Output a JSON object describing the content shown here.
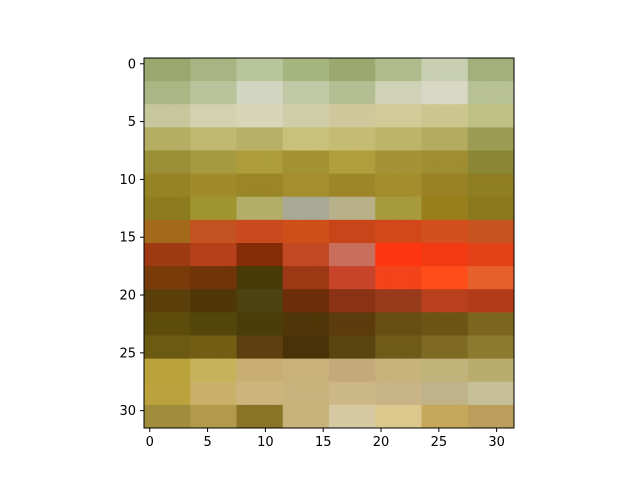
{
  "chart_data": {
    "type": "heatmap",
    "title": "",
    "xlabel": "",
    "ylabel": "",
    "grid": false,
    "legend": "none",
    "xlim": [
      -0.5,
      31.5
    ],
    "ylim": [
      31.5,
      -0.5
    ],
    "x_ticks": [
      0,
      5,
      10,
      15,
      20,
      25,
      30
    ],
    "y_ticks": [
      0,
      5,
      10,
      15,
      20,
      25,
      30
    ],
    "image_size": [
      32,
      32
    ],
    "row_bands_rgb_hex": [
      [
        "#9aa870",
        "#a8b481",
        "#b9c59c",
        "#a6b47e",
        "#9aa870",
        "#b0bb8c",
        "#c9cfb1",
        "#a3b07b"
      ],
      [
        "#aab683",
        "#b9c39b",
        "#d2d5bf",
        "#c1c8a5",
        "#b5be93",
        "#cfd2b6",
        "#d8d8c5",
        "#b8c095"
      ],
      [
        "#c6c79d",
        "#d4d1b0",
        "#d9d5b8",
        "#cfcda7",
        "#d0c89a",
        "#d2ca97",
        "#cbc68e",
        "#bfc083"
      ],
      [
        "#b4ad62",
        "#c0b86e",
        "#b9b067",
        "#c9c07b",
        "#c6bb73",
        "#bdb46a",
        "#b5ab60",
        "#9d9c55"
      ],
      [
        "#9a8f36",
        "#a59a40",
        "#ad9e3b",
        "#a39233",
        "#b09d3c",
        "#a59236",
        "#9f8d32",
        "#8c8734"
      ],
      [
        "#958324",
        "#a08b2a",
        "#9a8527",
        "#a58e2e",
        "#9d8628",
        "#a48d2d",
        "#998225",
        "#8f7e24"
      ],
      [
        "#8d7b20",
        "#a0942f",
        "#b3ad6a",
        "#a9a894",
        "#b8b089",
        "#a69a3d",
        "#987f1c",
        "#8b7a1d"
      ],
      [
        "#a36a1c",
        "#c25220",
        "#c94a1c",
        "#cf4f1a",
        "#c74518",
        "#d2481a",
        "#d3501e",
        "#c55421"
      ],
      [
        "#9e3a12",
        "#b6401a",
        "#842c08",
        "#c24a22",
        "#c86e5c",
        "#ff3510",
        "#f23a12",
        "#e34218"
      ],
      [
        "#7a3b0b",
        "#703408",
        "#4a3a08",
        "#9c3914",
        "#c7432a",
        "#f2431a",
        "#ff4d1a",
        "#e5602c"
      ],
      [
        "#5a3f0b",
        "#4f3708",
        "#4d4210",
        "#6b2e08",
        "#8a3214",
        "#983b1c",
        "#b8401c",
        "#b33c18"
      ],
      [
        "#5e4c0c",
        "#54460b",
        "#4a3d0a",
        "#503709",
        "#5c3c0d",
        "#674e14",
        "#6b5416",
        "#7b6620"
      ],
      [
        "#6d5a12",
        "#735e14",
        "#5d4010",
        "#4a3208",
        "#5a4410",
        "#6f5a18",
        "#7e6a22",
        "#8c7a2e"
      ],
      [
        "#b9a23a",
        "#c7b25c",
        "#c9ae74",
        "#c9b27a",
        "#c4a97a",
        "#c8b37c",
        "#c1b37a",
        "#b9ad6e"
      ],
      [
        "#bba23c",
        "#c9b16a",
        "#cdb47c",
        "#c8b37d",
        "#ccb887",
        "#c9b488",
        "#c0b289",
        "#c7bf98"
      ],
      [
        "#a08c3a",
        "#b39a4a",
        "#8a7426",
        "#c7b27a",
        "#d6c8a0",
        "#dcc88c",
        "#c6a85a",
        "#bc9e5c"
      ]
    ]
  }
}
